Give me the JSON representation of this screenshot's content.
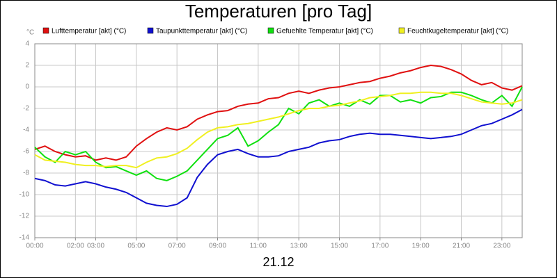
{
  "chart_data": {
    "type": "line",
    "title": "Temperaturen [pro Tag]",
    "y_label": "°C",
    "x_label": "21.12",
    "x": [
      0,
      0.5,
      1,
      1.5,
      2,
      2.5,
      3,
      3.5,
      4,
      4.5,
      5,
      5.5,
      6,
      6.5,
      7,
      7.5,
      8,
      8.5,
      9,
      9.5,
      10,
      10.5,
      11,
      11.5,
      12,
      12.5,
      13,
      13.5,
      14,
      14.5,
      15,
      15.5,
      16,
      16.5,
      17,
      17.5,
      18,
      18.5,
      19,
      19.5,
      20,
      20.5,
      21,
      21.5,
      22,
      22.5,
      23,
      23.5,
      24
    ],
    "xlim": [
      0,
      24
    ],
    "xticks": [
      {
        "value": 0,
        "label": "00:00"
      },
      {
        "value": 2,
        "label": "02:00"
      },
      {
        "value": 3,
        "label": "03:00"
      },
      {
        "value": 5,
        "label": "05:00"
      },
      {
        "value": 7,
        "label": "07:00"
      },
      {
        "value": 9,
        "label": "09:00"
      },
      {
        "value": 11,
        "label": "11:00"
      },
      {
        "value": 13,
        "label": "13:00"
      },
      {
        "value": 15,
        "label": "15:00"
      },
      {
        "value": 17,
        "label": "17:00"
      },
      {
        "value": 19,
        "label": "19:00"
      },
      {
        "value": 21,
        "label": "21:00"
      },
      {
        "value": 23,
        "label": "23:00"
      }
    ],
    "ylim": [
      -14,
      4
    ],
    "yticks": [
      -14,
      -12,
      -10,
      -8,
      -6,
      -4,
      -2,
      0,
      2,
      4
    ],
    "grid": true,
    "series": [
      {
        "name": "Lufttemperatur [akt] (°C)",
        "color": "#e01010",
        "values": [
          -5.8,
          -5.5,
          -6,
          -6.3,
          -6.5,
          -6.4,
          -6.8,
          -6.6,
          -6.8,
          -6.5,
          -5.5,
          -4.8,
          -4.2,
          -3.8,
          -4,
          -3.7,
          -3,
          -2.6,
          -2.3,
          -2.2,
          -1.8,
          -1.6,
          -1.5,
          -1.1,
          -1,
          -0.6,
          -0.4,
          -0.6,
          -0.3,
          -0.1,
          0,
          0.2,
          0.4,
          0.5,
          0.8,
          1,
          1.3,
          1.5,
          1.8,
          2,
          1.9,
          1.6,
          1.2,
          0.6,
          0.2,
          0.4,
          -0.1,
          -0.3,
          0.1
        ]
      },
      {
        "name": "Taupunkttemperatur [akt] (°C)",
        "color": "#1010d0",
        "values": [
          -8.5,
          -8.7,
          -9.1,
          -9.2,
          -9,
          -8.8,
          -9,
          -9.3,
          -9.5,
          -9.8,
          -10.3,
          -10.8,
          -11,
          -11.1,
          -10.9,
          -10.3,
          -8.4,
          -7.2,
          -6.3,
          -6,
          -5.8,
          -6.2,
          -6.5,
          -6.5,
          -6.4,
          -6,
          -5.8,
          -5.6,
          -5.2,
          -5,
          -4.9,
          -4.6,
          -4.4,
          -4.3,
          -4.4,
          -4.4,
          -4.5,
          -4.6,
          -4.7,
          -4.8,
          -4.7,
          -4.6,
          -4.4,
          -4,
          -3.6,
          -3.4,
          -3,
          -2.6,
          -2.1
        ]
      },
      {
        "name": "Gefuehlte Temperatur [akt] (°C)",
        "color": "#10e010",
        "values": [
          -5.6,
          -6.5,
          -7,
          -6,
          -6.3,
          -6,
          -7,
          -7.5,
          -7.4,
          -7.8,
          -8.2,
          -7.8,
          -8.5,
          -8.7,
          -8.3,
          -7.8,
          -6.8,
          -5.8,
          -4.8,
          -4.5,
          -3.8,
          -5.5,
          -5,
          -4.2,
          -3.5,
          -2,
          -2.5,
          -1.5,
          -1.2,
          -1.8,
          -1.5,
          -1.8,
          -1.2,
          -1.6,
          -0.8,
          -0.8,
          -1.4,
          -1.2,
          -1.5,
          -1,
          -0.9,
          -0.5,
          -0.5,
          -0.8,
          -1.2,
          -1.5,
          -0.8,
          -1.8,
          0
        ]
      },
      {
        "name": "Feuchtkugeltemperatur [akt] (°C)",
        "color": "#f0f020",
        "values": [
          -6.3,
          -6.8,
          -6.9,
          -7,
          -7.2,
          -7.3,
          -7.3,
          -7.4,
          -7.3,
          -7.3,
          -7.5,
          -7,
          -6.6,
          -6.5,
          -6.2,
          -5.7,
          -4.9,
          -4.2,
          -3.8,
          -3.7,
          -3.5,
          -3.4,
          -3.2,
          -3,
          -2.8,
          -2.5,
          -2.2,
          -2,
          -2,
          -1.8,
          -1.7,
          -1.5,
          -1.3,
          -1,
          -0.9,
          -0.8,
          -0.6,
          -0.6,
          -0.5,
          -0.5,
          -0.6,
          -0.6,
          -0.8,
          -1.1,
          -1.4,
          -1.5,
          -1.6,
          -1.5,
          -1.2
        ]
      }
    ]
  }
}
